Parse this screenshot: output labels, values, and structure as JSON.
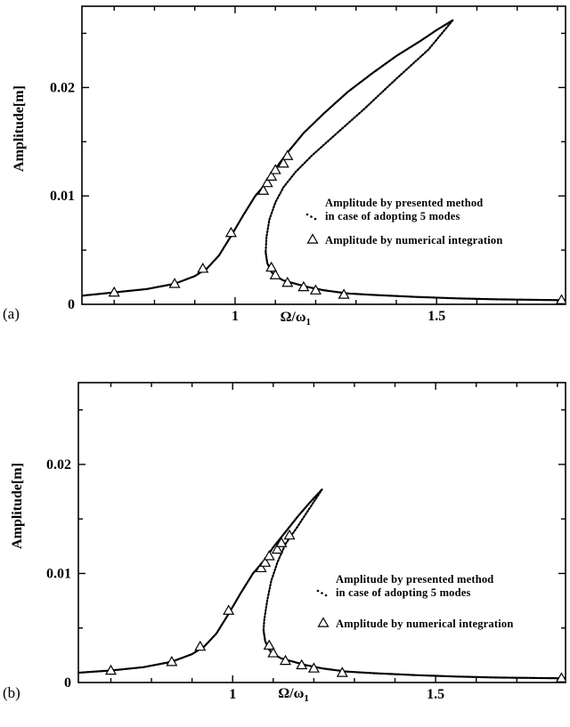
{
  "chart_data": [
    {
      "type": "line",
      "panel_label": "(a)",
      "title": "",
      "xlabel_main": "Ω/ω",
      "xlabel_sub": "1",
      "ylabel": "Amplitude[m]",
      "xlim": [
        0.62,
        1.82
      ],
      "ylim": [
        0,
        0.0275
      ],
      "x_ticks": [
        {
          "value": 1,
          "label": "1"
        },
        {
          "value": 1.5,
          "label": "1.5"
        }
      ],
      "y_ticks": [
        {
          "value": 0,
          "label": "0"
        },
        {
          "value": 0.01,
          "label": "0.01"
        },
        {
          "value": 0.02,
          "label": "0.02"
        }
      ],
      "grid": false,
      "legend_position": "right",
      "legend": [
        {
          "marker": "dots",
          "lines": [
            "Amplitude by presented method",
            "in case of adopting 5 modes"
          ]
        },
        {
          "marker": "triangle",
          "lines": [
            "Amplitude by numerical integration"
          ]
        }
      ],
      "series": [
        {
          "name": "Amplitude by presented method in case of adopting 5 modes",
          "style": "dotted-line",
          "upper_branch": {
            "x": [
              0.62,
              0.7,
              0.78,
              0.85,
              0.9,
              0.93,
              0.96,
              0.99,
              1.02,
              1.05,
              1.08,
              1.1,
              1.13,
              1.17,
              1.22,
              1.28,
              1.34,
              1.4,
              1.46,
              1.5,
              1.54
            ],
            "y": [
              0.0008,
              0.0011,
              0.0014,
              0.0019,
              0.0026,
              0.0033,
              0.0045,
              0.0063,
              0.0082,
              0.01,
              0.0113,
              0.0125,
              0.014,
              0.0158,
              0.0176,
              0.0196,
              0.0213,
              0.0229,
              0.0243,
              0.0253,
              0.0262
            ]
          },
          "unstable_branch": {
            "x": [
              1.54,
              1.48,
              1.4,
              1.32,
              1.25,
              1.19,
              1.15,
              1.12,
              1.1,
              1.085,
              1.078,
              1.076
            ],
            "y": [
              0.0262,
              0.0235,
              0.0208,
              0.018,
              0.0157,
              0.0137,
              0.0122,
              0.0108,
              0.0094,
              0.0078,
              0.0062,
              0.0048
            ]
          },
          "lower_branch": {
            "x": [
              1.076,
              1.08,
              1.09,
              1.1,
              1.12,
              1.15,
              1.18,
              1.22,
              1.28,
              1.35,
              1.45,
              1.55,
              1.65,
              1.82
            ],
            "y": [
              0.0048,
              0.0038,
              0.003,
              0.0026,
              0.0022,
              0.0019,
              0.0016,
              0.0013,
              0.001,
              0.00085,
              0.00068,
              0.00055,
              0.00046,
              0.00038
            ]
          }
        },
        {
          "name": "Amplitude by numerical integration",
          "style": "triangle-markers",
          "x": [
            0.7,
            0.85,
            0.92,
            0.99,
            1.07,
            1.08,
            1.09,
            1.1,
            1.12,
            1.13,
            1.09,
            1.1,
            1.13,
            1.17,
            1.2,
            1.27,
            1.81
          ],
          "y": [
            0.0011,
            0.0019,
            0.0033,
            0.0066,
            0.0105,
            0.0112,
            0.0118,
            0.0124,
            0.013,
            0.0137,
            0.0034,
            0.0027,
            0.002,
            0.0016,
            0.0013,
            0.0009,
            0.0004
          ]
        }
      ]
    },
    {
      "type": "line",
      "panel_label": "(b)",
      "title": "",
      "xlabel_main": "Ω/ω",
      "xlabel_sub": "1",
      "ylabel": "Amplitude[m]",
      "xlim": [
        0.62,
        1.82
      ],
      "ylim": [
        0,
        0.0275
      ],
      "x_ticks": [
        {
          "value": 1,
          "label": "1"
        },
        {
          "value": 1.5,
          "label": "1.5"
        }
      ],
      "y_ticks": [
        {
          "value": 0,
          "label": "0"
        },
        {
          "value": 0.01,
          "label": "0.01"
        },
        {
          "value": 0.02,
          "label": "0.02"
        }
      ],
      "grid": false,
      "legend_position": "right",
      "legend": [
        {
          "marker": "dots",
          "lines": [
            "Amplitude by presented method",
            "in case of adopting 5 modes"
          ]
        },
        {
          "marker": "triangle",
          "lines": [
            "Amplitude by numerical integration"
          ]
        }
      ],
      "series": [
        {
          "name": "Amplitude by presented method in case of adopting 5 modes",
          "style": "dotted-line",
          "upper_branch": {
            "x": [
              0.62,
              0.7,
              0.78,
              0.85,
              0.9,
              0.93,
              0.96,
              0.99,
              1.02,
              1.05,
              1.08,
              1.1,
              1.13,
              1.16,
              1.19,
              1.22
            ],
            "y": [
              0.0009,
              0.0011,
              0.0014,
              0.0019,
              0.0026,
              0.0033,
              0.0045,
              0.0063,
              0.0082,
              0.01,
              0.0113,
              0.0124,
              0.0138,
              0.0152,
              0.0165,
              0.0177
            ]
          },
          "unstable_branch": {
            "x": [
              1.22,
              1.19,
              1.16,
              1.13,
              1.11,
              1.095,
              1.085,
              1.078,
              1.076
            ],
            "y": [
              0.0177,
              0.016,
              0.0143,
              0.0127,
              0.011,
              0.0093,
              0.0075,
              0.0058,
              0.0048
            ]
          },
          "lower_branch": {
            "x": [
              1.076,
              1.08,
              1.09,
              1.1,
              1.12,
              1.15,
              1.18,
              1.22,
              1.28,
              1.35,
              1.45,
              1.55,
              1.65,
              1.82
            ],
            "y": [
              0.0048,
              0.0038,
              0.003,
              0.0026,
              0.0022,
              0.0019,
              0.0016,
              0.0013,
              0.001,
              0.00085,
              0.00068,
              0.00055,
              0.00046,
              0.00038
            ]
          }
        },
        {
          "name": "Amplitude by numerical integration",
          "style": "triangle-markers",
          "x": [
            0.7,
            0.85,
            0.92,
            0.99,
            1.07,
            1.08,
            1.09,
            1.11,
            1.12,
            1.14,
            1.09,
            1.1,
            1.13,
            1.17,
            1.2,
            1.27,
            1.81
          ],
          "y": [
            0.0011,
            0.0019,
            0.0033,
            0.0066,
            0.0105,
            0.011,
            0.0116,
            0.0122,
            0.0128,
            0.0135,
            0.0034,
            0.0027,
            0.002,
            0.0016,
            0.0013,
            0.0009,
            0.0004
          ]
        }
      ]
    }
  ]
}
